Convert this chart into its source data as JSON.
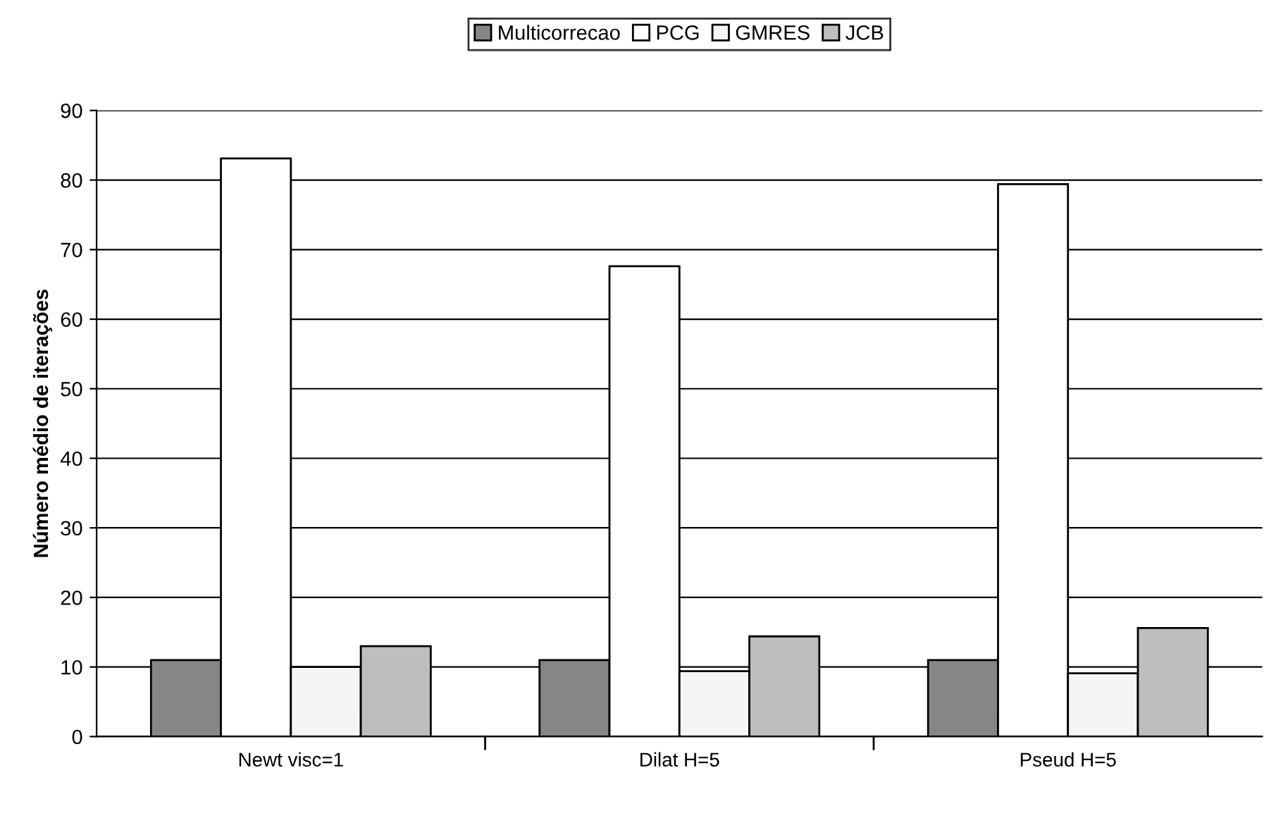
{
  "chart_data": {
    "type": "bar",
    "ylabel": "Número médio de iterações",
    "categories": [
      "Newt visc=1",
      "Dilat H=5",
      "Pseud H=5"
    ],
    "series": [
      {
        "name": "Multicorrecao",
        "color": "#868686",
        "values": [
          11,
          11,
          11
        ]
      },
      {
        "name": "PCG",
        "color": "#ffffff",
        "values": [
          83.1,
          67.6,
          79.4
        ]
      },
      {
        "name": "GMRES",
        "color": "#f5f5f5",
        "values": [
          10,
          9.4,
          9.1
        ]
      },
      {
        "name": "JCB",
        "color": "#bebebe",
        "values": [
          13,
          14.4,
          15.6
        ]
      }
    ],
    "ylim": [
      0,
      90
    ],
    "yticks": [
      0,
      10,
      20,
      30,
      40,
      50,
      60,
      70,
      80,
      90
    ],
    "grid": "y",
    "legend": "top"
  }
}
